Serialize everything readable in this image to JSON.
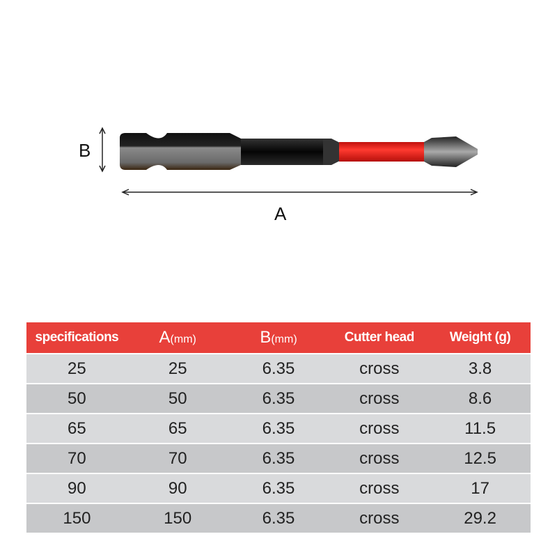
{
  "diagram": {
    "label_a": "A",
    "label_b": "B",
    "accent_color": "#e8403a",
    "band_color": "#e8241f"
  },
  "table": {
    "headers": [
      {
        "main": "specifications",
        "unit": ""
      },
      {
        "main": "A",
        "unit": "(mm)"
      },
      {
        "main": "B",
        "unit": "(mm)"
      },
      {
        "main": "Cutter head",
        "unit": ""
      },
      {
        "main": "Weight (g)",
        "unit": ""
      }
    ],
    "rows": [
      [
        "25",
        "25",
        "6.35",
        "cross",
        "3.8"
      ],
      [
        "50",
        "50",
        "6.35",
        "cross",
        "8.6"
      ],
      [
        "65",
        "65",
        "6.35",
        "cross",
        "11.5"
      ],
      [
        "70",
        "70",
        "6.35",
        "cross",
        "12.5"
      ],
      [
        "90",
        "90",
        "6.35",
        "cross",
        "17"
      ],
      [
        "150",
        "150",
        "6.35",
        "cross",
        "29.2"
      ]
    ]
  }
}
